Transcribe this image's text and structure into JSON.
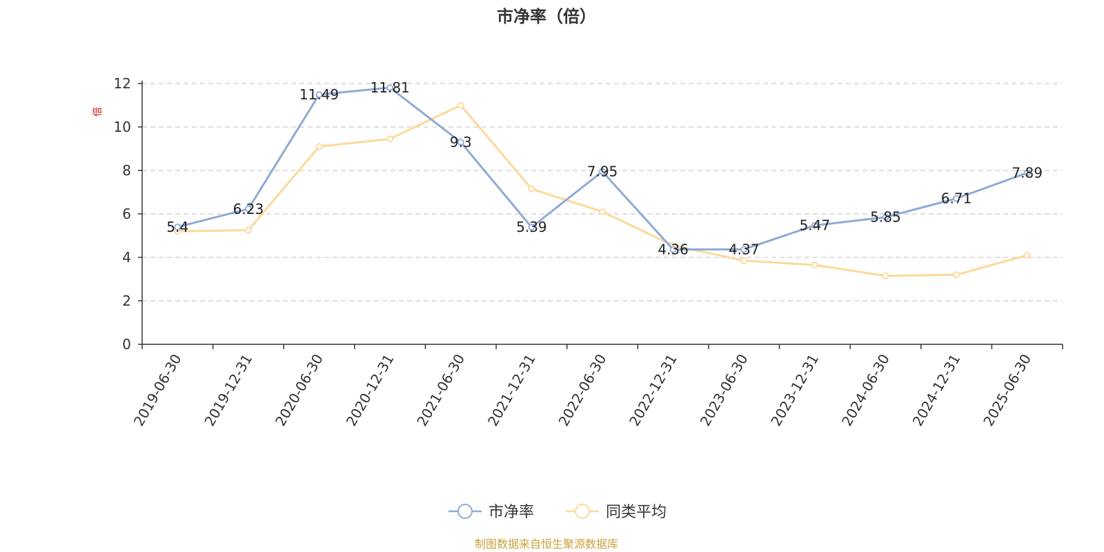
{
  "chart_data": {
    "type": "line",
    "title": "市净率（倍）",
    "ylabel": "倍",
    "xlabel": "",
    "ylim": [
      0,
      12
    ],
    "yticks": [
      0,
      2,
      4,
      6,
      8,
      10,
      12
    ],
    "categories": [
      "2019-06-30",
      "2019-12-31",
      "2020-06-30",
      "2020-12-31",
      "2021-06-30",
      "2021-12-31",
      "2022-06-30",
      "2022-12-31",
      "2023-06-30",
      "2023-12-31",
      "2024-06-30",
      "2024-12-31",
      "2025-06-30"
    ],
    "series": [
      {
        "name": "市净率",
        "color": "#8eaad6",
        "values": [
          5.4,
          6.23,
          11.49,
          11.81,
          9.3,
          5.39,
          7.95,
          4.36,
          4.37,
          5.47,
          5.85,
          6.71,
          7.89
        ],
        "labels": [
          "5.4",
          "6.23",
          "11.49",
          "11.81",
          "9.3",
          "5.39",
          "7.95",
          "4.36",
          "4.37",
          "5.47",
          "5.85",
          "6.71",
          "7.89"
        ],
        "show_labels": true
      },
      {
        "name": "同类平均",
        "color": "#fcd999",
        "values": [
          5.2,
          5.25,
          9.1,
          9.45,
          11.0,
          7.15,
          6.1,
          4.55,
          3.85,
          3.65,
          3.15,
          3.2,
          4.1
        ],
        "show_labels": false
      }
    ],
    "grid": true,
    "legend_position": "bottom-center",
    "source_note": "制图数据来自恒生聚源数据库"
  }
}
